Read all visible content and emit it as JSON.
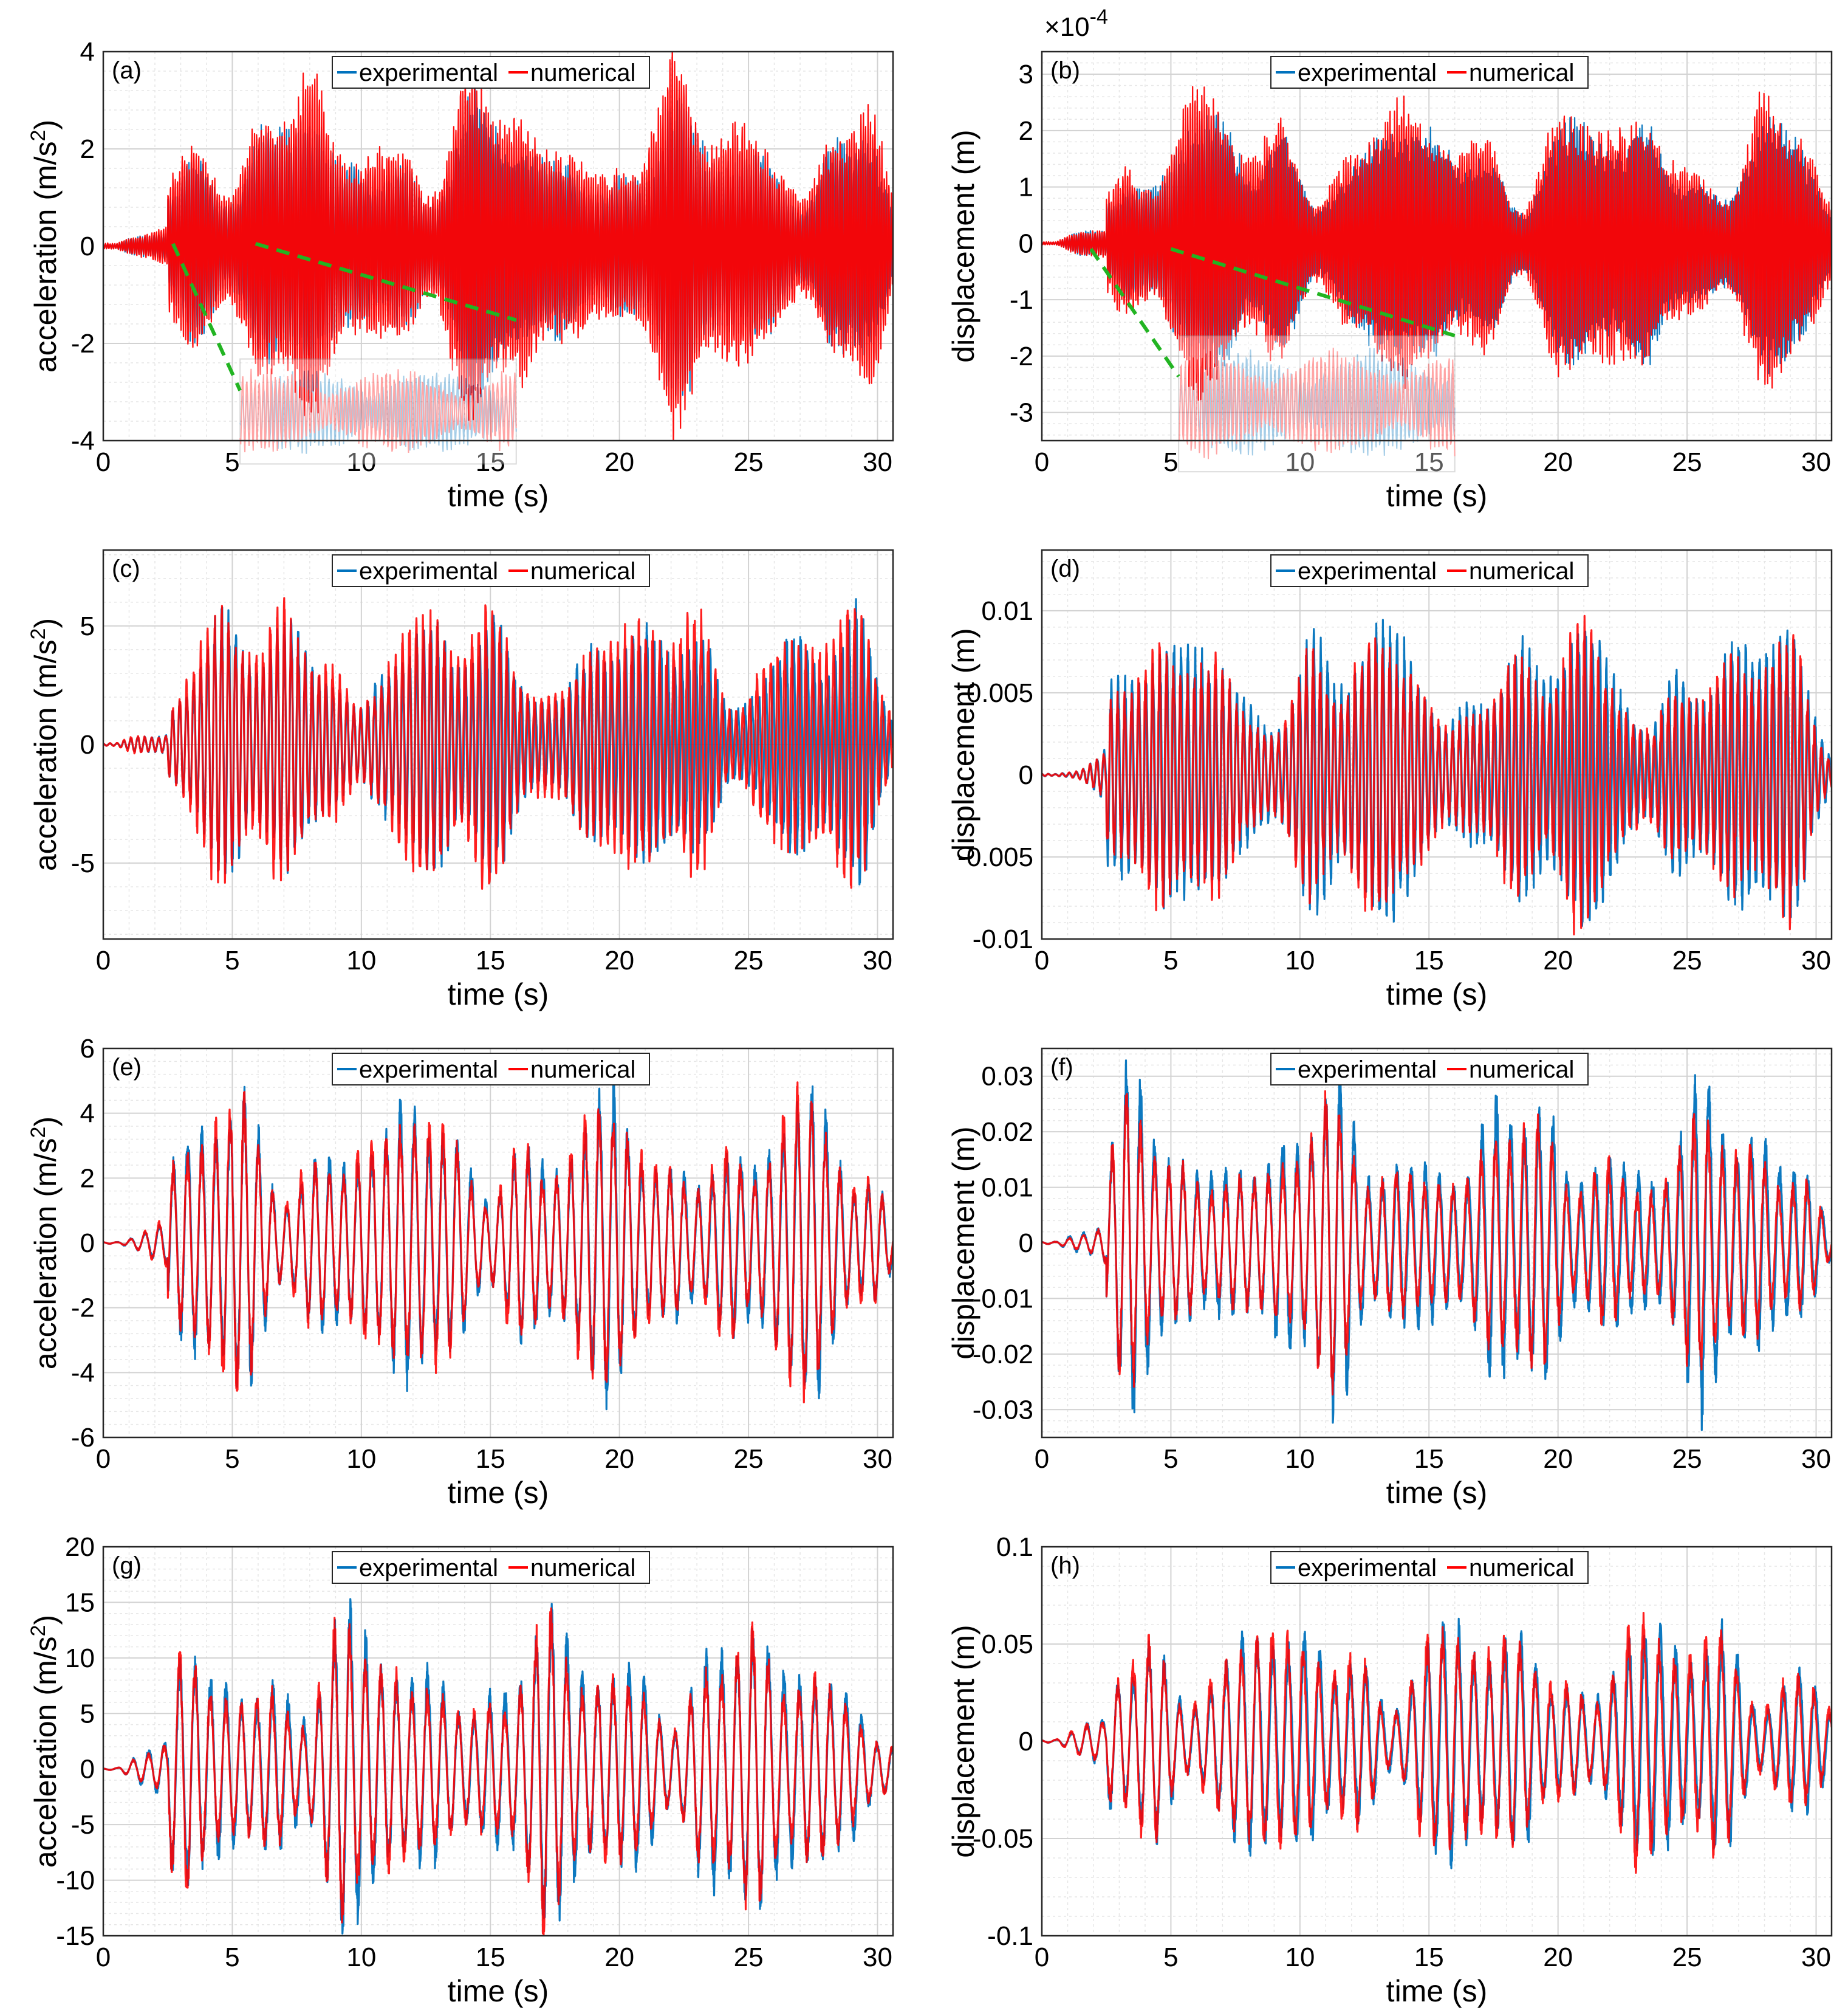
{
  "colors": {
    "experimental": "#0072BD",
    "numerical": "#FF0000",
    "zoom_connector": "#22B422"
  },
  "chart_data": [
    {
      "panel": "(a)",
      "type": "line",
      "xlabel": "time (s)",
      "ylabel": "acceleration (m/s",
      "ylabel_sup": "2",
      "ylabel_end": ")",
      "xlim": [
        0,
        30.6
      ],
      "ylim": [
        -4,
        4
      ],
      "xticks": [
        0,
        5,
        10,
        15,
        20,
        25,
        30
      ],
      "xtick_labels": [
        "0",
        "5",
        "10",
        "15",
        "20",
        "25",
        "30"
      ],
      "yticks": [
        -4,
        -2,
        0,
        2,
        4
      ],
      "ytick_labels": [
        "-4",
        "-2",
        "0",
        "2",
        "4"
      ],
      "exponent_label": "",
      "legend": [
        "experimental",
        "numerical"
      ],
      "series": [
        {
          "name": "experimental",
          "peak_amplitude": 3.2,
          "period_s": 0.09
        },
        {
          "name": "numerical",
          "peak_amplitude": 3.8,
          "period_s": 0.09
        }
      ],
      "inset": {
        "x_range": [
          5.3,
          16
        ],
        "y_range": [
          -4.8,
          -2.2
        ]
      }
    },
    {
      "panel": "(b)",
      "type": "line",
      "xlabel": "time (s)",
      "ylabel": "displacement (m)",
      "ylabel_sup": "",
      "ylabel_end": "",
      "xlim": [
        0,
        30.6
      ],
      "ylim": [
        -3.5,
        3.4
      ],
      "xticks": [
        0,
        5,
        10,
        15,
        20,
        25,
        30
      ],
      "xtick_labels": [
        "0",
        "5",
        "10",
        "15",
        "20",
        "25",
        "30"
      ],
      "yticks": [
        -3,
        -2,
        -1,
        0,
        1,
        2,
        3
      ],
      "ytick_labels": [
        "-3",
        "-2",
        "-1",
        "0",
        "1",
        "2",
        "3"
      ],
      "exponent_label": "×10",
      "exponent_sup": "-4",
      "legend": [
        "experimental",
        "numerical"
      ],
      "series": [
        {
          "name": "experimental",
          "peak_amplitude": 2.6,
          "period_s": 0.09
        },
        {
          "name": "numerical",
          "peak_amplitude": 2.9,
          "period_s": 0.09
        }
      ],
      "inset": {
        "x_range": [
          5.3,
          16
        ],
        "y_range": [
          -4.4,
          -1.8
        ]
      }
    },
    {
      "panel": "(c)",
      "type": "line",
      "xlabel": "time (s)",
      "ylabel": "acceleration (m/s",
      "ylabel_sup": "2",
      "ylabel_end": ")",
      "xlim": [
        0,
        30.6
      ],
      "ylim": [
        -8.2,
        8.2
      ],
      "xticks": [
        0,
        5,
        10,
        15,
        20,
        25,
        30
      ],
      "xtick_labels": [
        "0",
        "5",
        "10",
        "15",
        "20",
        "25",
        "30"
      ],
      "yticks": [
        -5,
        0,
        5
      ],
      "ytick_labels": [
        "-5",
        "0",
        "5"
      ],
      "exponent_label": "",
      "legend": [
        "experimental",
        "numerical"
      ],
      "series": [
        {
          "name": "experimental",
          "peak_amplitude": 6.2,
          "period_s": 0.27
        },
        {
          "name": "numerical",
          "peak_amplitude": 6.7,
          "period_s": 0.27
        }
      ]
    },
    {
      "panel": "(d)",
      "type": "line",
      "xlabel": "time (s)",
      "ylabel": "displacement (m)",
      "ylabel_sup": "",
      "ylabel_end": "",
      "xlim": [
        0,
        30.6
      ],
      "ylim": [
        -0.01,
        0.0137
      ],
      "xticks": [
        0,
        5,
        10,
        15,
        20,
        25,
        30
      ],
      "xtick_labels": [
        "0",
        "5",
        "10",
        "15",
        "20",
        "25",
        "30"
      ],
      "yticks": [
        -0.01,
        -0.005,
        0,
        0.005,
        0.01
      ],
      "ytick_labels": [
        "-0.01",
        "-0.005",
        "0",
        "0.005",
        "0.01"
      ],
      "exponent_label": "",
      "legend": [
        "experimental",
        "numerical"
      ],
      "series": [
        {
          "name": "experimental",
          "peak_amplitude": 0.0105,
          "period_s": 0.27
        },
        {
          "name": "numerical",
          "peak_amplitude": 0.0095,
          "period_s": 0.27
        }
      ]
    },
    {
      "panel": "(e)",
      "type": "line",
      "xlabel": "time (s)",
      "ylabel": "acceleration (m/s",
      "ylabel_sup": "2",
      "ylabel_end": ")",
      "xlim": [
        0,
        30.6
      ],
      "ylim": [
        -6,
        6
      ],
      "xticks": [
        0,
        5,
        10,
        15,
        20,
        25,
        30
      ],
      "xtick_labels": [
        "0",
        "5",
        "10",
        "15",
        "20",
        "25",
        "30"
      ],
      "yticks": [
        -6,
        -4,
        -2,
        0,
        2,
        4,
        6
      ],
      "ytick_labels": [
        "-6",
        "-4",
        "-2",
        "0",
        "2",
        "4",
        "6"
      ],
      "exponent_label": "",
      "legend": [
        "experimental",
        "numerical"
      ],
      "series": [
        {
          "name": "experimental",
          "peak_amplitude": 5.0,
          "period_s": 0.55
        },
        {
          "name": "numerical",
          "peak_amplitude": 4.8,
          "period_s": 0.55
        }
      ]
    },
    {
      "panel": "(f)",
      "type": "line",
      "xlabel": "time (s)",
      "ylabel": "displacement (m)",
      "ylabel_sup": "",
      "ylabel_end": "",
      "xlim": [
        0,
        30.6
      ],
      "ylim": [
        -0.035,
        0.035
      ],
      "xticks": [
        0,
        5,
        10,
        15,
        20,
        25,
        30
      ],
      "xtick_labels": [
        "0",
        "5",
        "10",
        "15",
        "20",
        "25",
        "30"
      ],
      "yticks": [
        -0.03,
        -0.02,
        -0.01,
        0,
        0.01,
        0.02,
        0.03
      ],
      "ytick_labels": [
        "-0.03",
        "-0.02",
        "-0.01",
        "0",
        "0.01",
        "0.02",
        "0.03"
      ],
      "exponent_label": "",
      "legend": [
        "experimental",
        "numerical"
      ],
      "series": [
        {
          "name": "experimental",
          "peak_amplitude": 0.03,
          "period_s": 0.55
        },
        {
          "name": "numerical",
          "peak_amplitude": 0.025,
          "period_s": 0.55
        }
      ]
    },
    {
      "panel": "(g)",
      "type": "line",
      "xlabel": "time (s)",
      "ylabel": "acceleration (m/s",
      "ylabel_sup": "2",
      "ylabel_end": ")",
      "xlim": [
        0,
        30.6
      ],
      "ylim": [
        -15,
        20
      ],
      "xticks": [
        0,
        5,
        10,
        15,
        20,
        25,
        30
      ],
      "xtick_labels": [
        "0",
        "5",
        "10",
        "15",
        "20",
        "25",
        "30"
      ],
      "yticks": [
        -15,
        -10,
        -5,
        0,
        5,
        10,
        15,
        20
      ],
      "ytick_labels": [
        "-15",
        "-10",
        "-5",
        "0",
        "5",
        "10",
        "15",
        "20"
      ],
      "exponent_label": "",
      "legend": [
        "experimental",
        "numerical"
      ],
      "series": [
        {
          "name": "experimental",
          "peak_amplitude": 15,
          "period_s": 0.6
        },
        {
          "name": "numerical",
          "peak_amplitude": 13.5,
          "period_s": 0.6
        }
      ]
    },
    {
      "panel": "(h)",
      "type": "line",
      "xlabel": "time (s)",
      "ylabel": "displacement (m)",
      "ylabel_sup": "",
      "ylabel_end": "",
      "xlim": [
        0,
        30.6
      ],
      "ylim": [
        -0.1,
        0.1
      ],
      "xticks": [
        0,
        5,
        10,
        15,
        20,
        25,
        30
      ],
      "xtick_labels": [
        "0",
        "5",
        "10",
        "15",
        "20",
        "25",
        "30"
      ],
      "yticks": [
        -0.1,
        -0.05,
        0,
        0.05,
        0.1
      ],
      "ytick_labels": [
        "-0.1",
        "-0.05",
        "0",
        "0.05",
        "0.1"
      ],
      "exponent_label": "",
      "legend": [
        "experimental",
        "numerical"
      ],
      "series": [
        {
          "name": "experimental",
          "peak_amplitude": 0.072,
          "period_s": 0.6
        },
        {
          "name": "numerical",
          "peak_amplitude": 0.071,
          "period_s": 0.6
        }
      ]
    }
  ]
}
